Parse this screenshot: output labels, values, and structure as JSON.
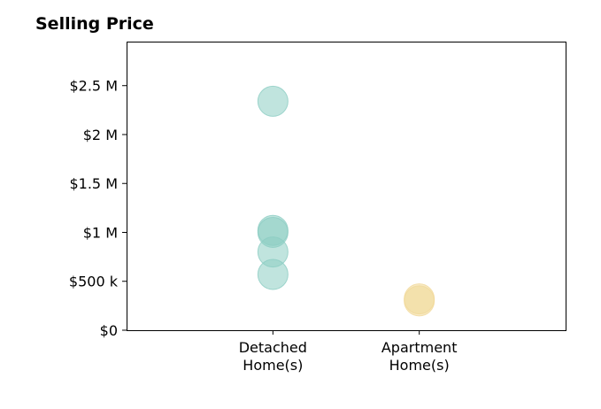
{
  "chart_data": {
    "type": "scatter",
    "title": "Selling Price",
    "xlabel": "",
    "ylabel": "",
    "categories": [
      [
        "Detached",
        "Home(s)"
      ],
      [
        "Apartment",
        "Home(s)"
      ]
    ],
    "y_ticks": [
      {
        "value": 0,
        "label": "$0"
      },
      {
        "value": 500000,
        "label": "$500 k"
      },
      {
        "value": 1000000,
        "label": "$1 M"
      },
      {
        "value": 1500000,
        "label": "$1.5 M"
      },
      {
        "value": 2000000,
        "label": "$2 M"
      },
      {
        "value": 2500000,
        "label": "$2.5 M"
      }
    ],
    "ylim": [
      0,
      2950000
    ],
    "xlim": [
      -1,
      2
    ],
    "grid": false,
    "series": [
      {
        "category": 0,
        "color": "#8ccdc3",
        "values": [
          2340000,
          1020000,
          1000000,
          800000,
          570000
        ]
      },
      {
        "category": 1,
        "color": "#f1d898",
        "values": [
          320000,
          300000
        ]
      }
    ]
  }
}
